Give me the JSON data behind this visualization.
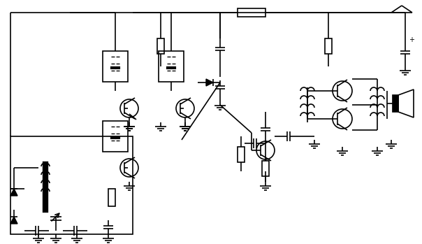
{
  "bg_color": "#ffffff",
  "line_color": "#000000",
  "line_width": 1.2,
  "fig_width": 6.04,
  "fig_height": 3.49,
  "dpi": 100
}
